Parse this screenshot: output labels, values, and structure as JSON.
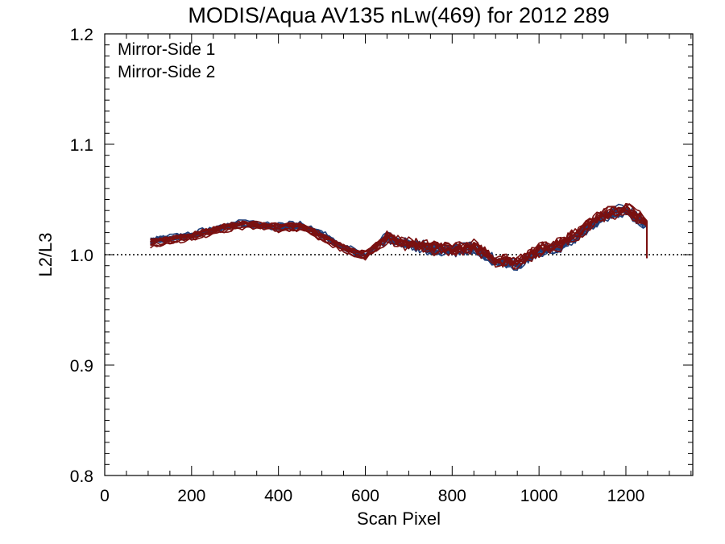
{
  "chart_data": {
    "type": "line",
    "title": "MODIS/Aqua AV135 nLw(469) for 2012 289",
    "xlabel": "Scan Pixel",
    "ylabel": "L2/L3",
    "xlim": [
      0,
      1354
    ],
    "ylim": [
      0.8,
      1.2
    ],
    "x_ticks": [
      0,
      200,
      400,
      600,
      800,
      1000,
      1200
    ],
    "y_ticks": [
      0.8,
      0.9,
      1.0,
      1.1,
      1.2
    ],
    "x_tick_labels": [
      "0",
      "200",
      "400",
      "600",
      "800",
      "1000",
      "1200"
    ],
    "y_tick_labels": [
      "0.8",
      "0.9",
      "1.0",
      "1.1",
      "1.2"
    ],
    "reference_line": {
      "y": 1.0,
      "style": "dotted"
    },
    "grid": false,
    "legend_position": "top-left",
    "x": [
      105,
      150,
      200,
      250,
      300,
      350,
      400,
      450,
      500,
      550,
      600,
      650,
      700,
      750,
      800,
      850,
      900,
      950,
      1000,
      1050,
      1100,
      1150,
      1200,
      1248
    ],
    "series": [
      {
        "name": "Mirror-Side 1",
        "color": "#1f3f7a",
        "line_count": 10,
        "values": [
          1.012,
          1.015,
          1.017,
          1.022,
          1.027,
          1.026,
          1.025,
          1.026,
          1.018,
          1.006,
          0.998,
          1.016,
          1.008,
          1.005,
          1.003,
          1.006,
          0.993,
          0.99,
          1.002,
          1.007,
          1.02,
          1.035,
          1.04,
          1.027
        ]
      },
      {
        "name": "Mirror-Side 2",
        "color": "#7a1010",
        "line_count": 10,
        "values": [
          1.01,
          1.013,
          1.016,
          1.021,
          1.026,
          1.026,
          1.024,
          1.025,
          1.016,
          1.005,
          0.999,
          1.015,
          1.009,
          1.006,
          1.004,
          1.007,
          0.995,
          0.992,
          1.004,
          1.009,
          1.022,
          1.036,
          1.041,
          1.028
        ]
      }
    ]
  }
}
